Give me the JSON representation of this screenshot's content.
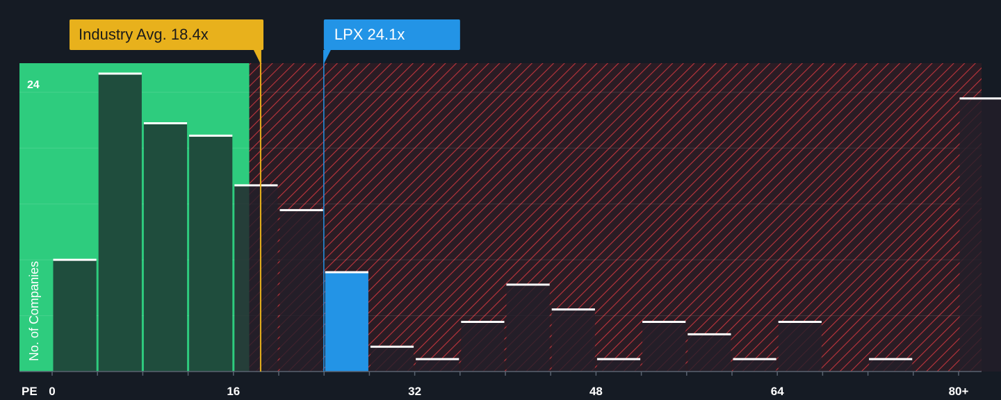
{
  "chart_data": {
    "type": "bar",
    "xlabel": "PE",
    "ylabel": "No. of Companies",
    "y_tick_label": "24",
    "x_ticks": [
      "0",
      "16",
      "32",
      "48",
      "64",
      "80+"
    ],
    "x_tick_values": [
      0,
      16,
      32,
      48,
      64,
      80
    ],
    "xlim": [
      0,
      82
    ],
    "ylim": [
      0,
      24.8
    ],
    "bin_width": 4,
    "bins": [
      {
        "start": 0,
        "value": 9
      },
      {
        "start": 4,
        "value": 24
      },
      {
        "start": 8,
        "value": 20
      },
      {
        "start": 12,
        "value": 19
      },
      {
        "start": 16,
        "value": 15
      },
      {
        "start": 20,
        "value": 13
      },
      {
        "start": 24,
        "value": 8,
        "highlight": true
      },
      {
        "start": 28,
        "value": 2
      },
      {
        "start": 32,
        "value": 1
      },
      {
        "start": 36,
        "value": 4
      },
      {
        "start": 40,
        "value": 7
      },
      {
        "start": 44,
        "value": 5
      },
      {
        "start": 48,
        "value": 1
      },
      {
        "start": 52,
        "value": 4
      },
      {
        "start": 56,
        "value": 3
      },
      {
        "start": 60,
        "value": 1
      },
      {
        "start": 64,
        "value": 4
      },
      {
        "start": 68,
        "value": 0
      },
      {
        "start": 72,
        "value": 1
      },
      {
        "start": 76,
        "value": 0
      },
      {
        "start": 80,
        "value": 22
      }
    ],
    "industry_avg": {
      "label": "Industry Avg. 18.4x",
      "value": 18.4
    },
    "company": {
      "label": "LPX 24.1x",
      "ticker": "LPX",
      "value": 24.1
    },
    "colors": {
      "background": "#151b24",
      "fair_zone": "#2ecc7e",
      "bar_fair": "#1f4d3d",
      "bar_over": "#231f29",
      "hatch_bg": "#2a1c24",
      "hatch_line": "#c0353d",
      "industry_marker": "#e8b11c",
      "company_marker": "#2394e6",
      "bar_cap": "#ffffff",
      "text": "#ffffff"
    }
  }
}
